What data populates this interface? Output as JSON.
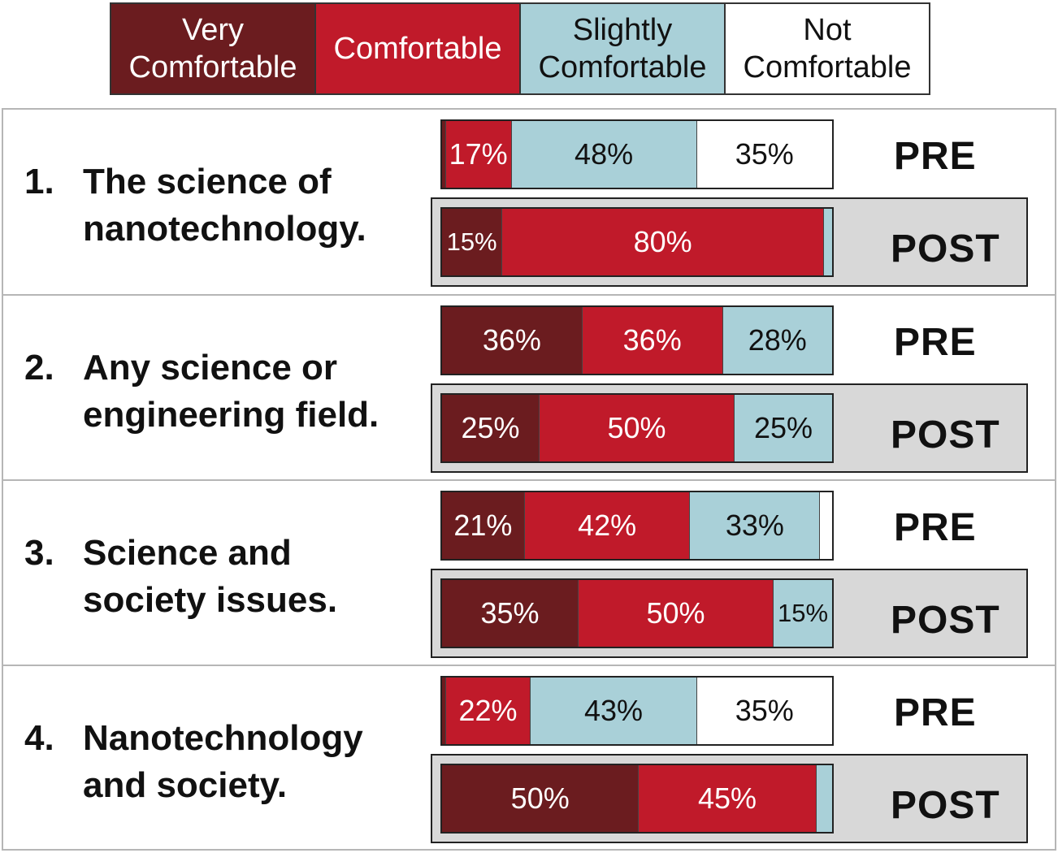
{
  "chart_data": {
    "type": "bar",
    "orientation": "horizontal-stacked-100",
    "legend": {
      "position": "top",
      "entries": [
        {
          "lines": [
            "Very",
            "Comfortable"
          ],
          "color": "#6b1c1f",
          "text_color": "#ffffff"
        },
        {
          "lines": [
            "Comfortable"
          ],
          "color": "#c01a2a",
          "text_color": "#ffffff"
        },
        {
          "lines": [
            "Slightly",
            "Comfortable"
          ],
          "color": "#a9d0d8",
          "text_color": "#111111"
        },
        {
          "lines": [
            "Not",
            "Comfortable"
          ],
          "color": "#ffffff",
          "text_color": "#111111"
        }
      ]
    },
    "categories": [
      "Very Comfortable",
      "Comfortable",
      "Slightly Comfortable",
      "Not Comfortable"
    ],
    "questions": [
      {
        "number": "1.",
        "lines": [
          "The science of",
          "nanotechnology."
        ],
        "pre": {
          "label": "PRE",
          "values": [
            1,
            17,
            48,
            35
          ],
          "labels": [
            "",
            "17%",
            "48%",
            "35%"
          ]
        },
        "post": {
          "label": "POST",
          "values": [
            15,
            80,
            2,
            0
          ],
          "labels": [
            "15%",
            "80%",
            "",
            ""
          ]
        }
      },
      {
        "number": "2.",
        "lines": [
          "Any science or",
          "engineering field."
        ],
        "pre": {
          "label": "PRE",
          "values": [
            36,
            36,
            28,
            0
          ],
          "labels": [
            "36%",
            "36%",
            "28%",
            ""
          ]
        },
        "post": {
          "label": "POST",
          "values": [
            25,
            50,
            25,
            0
          ],
          "labels": [
            "25%",
            "50%",
            "25%",
            ""
          ]
        }
      },
      {
        "number": "3.",
        "lines": [
          "Science and",
          "society issues."
        ],
        "pre": {
          "label": "PRE",
          "values": [
            21,
            42,
            33,
            3
          ],
          "labels": [
            "21%",
            "42%",
            "33%",
            ""
          ]
        },
        "post": {
          "label": "POST",
          "values": [
            35,
            50,
            15,
            0
          ],
          "labels": [
            "35%",
            "50%",
            "15%",
            ""
          ]
        }
      },
      {
        "number": "4.",
        "lines": [
          "Nanotechnology",
          "and society."
        ],
        "pre": {
          "label": "PRE",
          "values": [
            1,
            22,
            43,
            35
          ],
          "labels": [
            "",
            "22%",
            "43%",
            "35%"
          ]
        },
        "post": {
          "label": "POST",
          "values": [
            50,
            45,
            4,
            0
          ],
          "labels": [
            "50%",
            "45%",
            "",
            ""
          ]
        }
      }
    ]
  }
}
